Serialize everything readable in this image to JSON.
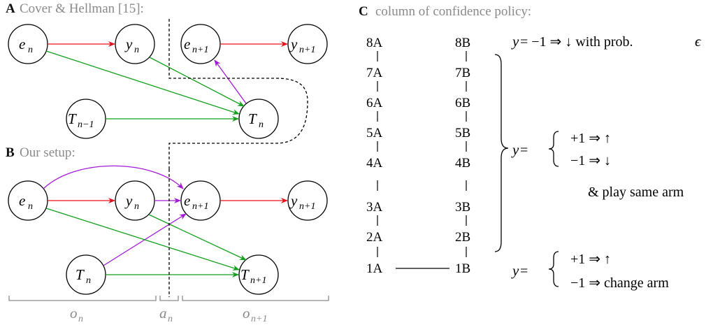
{
  "panel_a": {
    "letter": "A",
    "title": "Cover & Hellman [15]:",
    "nodes": {
      "e_n": {
        "main": "e",
        "sub": "n"
      },
      "y_n": {
        "main": "y",
        "sub": "n"
      },
      "e_n1": {
        "main": "e",
        "sub": "n+1"
      },
      "y_n1": {
        "main": "y",
        "sub": "n+1"
      },
      "T_nm1": {
        "main": "T",
        "sub": "n−1"
      },
      "T_n": {
        "main": "T",
        "sub": "n"
      }
    }
  },
  "panel_b": {
    "letter": "B",
    "title": "Our setup:",
    "nodes": {
      "e_n": {
        "main": "e",
        "sub": "n"
      },
      "y_n": {
        "main": "y",
        "sub": "n"
      },
      "e_n1": {
        "main": "e",
        "sub": "n+1"
      },
      "y_n1": {
        "main": "y",
        "sub": "n+1"
      },
      "T_n": {
        "main": "T",
        "sub": "n"
      },
      "T_n1": {
        "main": "T",
        "sub": "n+1"
      }
    },
    "braces": {
      "o_n": {
        "main": "o",
        "sub": "n"
      },
      "a_n": {
        "main": "a",
        "sub": "n"
      },
      "o_n1": {
        "main": "o",
        "sub": "n+1"
      }
    }
  },
  "panel_c": {
    "letter": "C",
    "title": "column of confidence policy:",
    "column_a": [
      "8A",
      "7A",
      "6A",
      "5A",
      "4A",
      "3A",
      "2A",
      "1A"
    ],
    "column_b": [
      "8B",
      "7B",
      "6B",
      "5B",
      "4B",
      "3B",
      "2B",
      "1B"
    ],
    "rule_top": {
      "y": "y",
      "eq": " = −1 ⇒ ↓ with prob. ",
      "eps": "ϵ"
    },
    "rule_middle": {
      "y": "y",
      "eq": " =",
      "line1": "+1 ⇒ ↑",
      "line2": "−1 ⇒ ↓",
      "note": "& play same arm"
    },
    "rule_bottom": {
      "y": "y",
      "eq": " =",
      "line1": "+1 ⇒ ↑",
      "line2": "−1 ⇒ change arm"
    }
  },
  "colors": {
    "red": "#e8101b",
    "green": "#14a01e",
    "purple": "#a31ad6",
    "gray": "#8a8a8a"
  }
}
